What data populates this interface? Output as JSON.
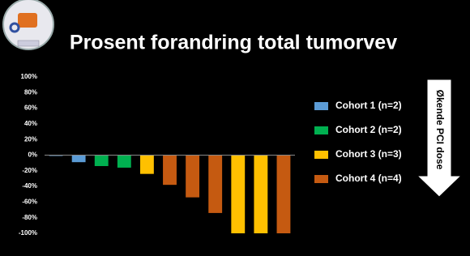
{
  "chart_data": {
    "type": "bar",
    "title": "Prosent forandring total tumorvev",
    "annotation": "Økende PCI dose",
    "categories": [
      null,
      null,
      null,
      null,
      null,
      null,
      null,
      null,
      null,
      null,
      null
    ],
    "series": [
      {
        "name": "Cohort 1 (n=2)",
        "color": "#5b9bd5",
        "values": [
          -1,
          -9,
          null,
          null,
          null,
          null,
          null,
          null,
          null,
          null,
          null
        ]
      },
      {
        "name": "Cohort 2 (n=2)",
        "color": "#00b050",
        "values": [
          null,
          null,
          -14,
          -16,
          null,
          null,
          null,
          null,
          null,
          null,
          null
        ]
      },
      {
        "name": "Cohort 3 (n=3)",
        "color": "#ffc000",
        "values": [
          null,
          null,
          null,
          null,
          -24,
          null,
          null,
          null,
          -100,
          -100,
          null
        ]
      },
      {
        "name": "Cohort 4 (n=4)",
        "color": "#c55a11",
        "values": [
          null,
          null,
          null,
          null,
          null,
          -38,
          -54,
          -74,
          null,
          null,
          -100
        ]
      }
    ],
    "ylim": [
      -100,
      100
    ],
    "yticks": [
      {
        "value": 100,
        "label": "100%"
      },
      {
        "value": 80,
        "label": "80%"
      },
      {
        "value": 60,
        "label": "60%"
      },
      {
        "value": 40,
        "label": "40%"
      },
      {
        "value": 20,
        "label": "20%"
      },
      {
        "value": 0,
        "label": "0%"
      },
      {
        "value": -20,
        "label": "-20%"
      },
      {
        "value": -40,
        "label": "-40%"
      },
      {
        "value": -60,
        "label": "-60%"
      },
      {
        "value": -80,
        "label": "-80%"
      },
      {
        "value": -100,
        "label": "-100%"
      }
    ],
    "grid": false,
    "legend": "right"
  }
}
